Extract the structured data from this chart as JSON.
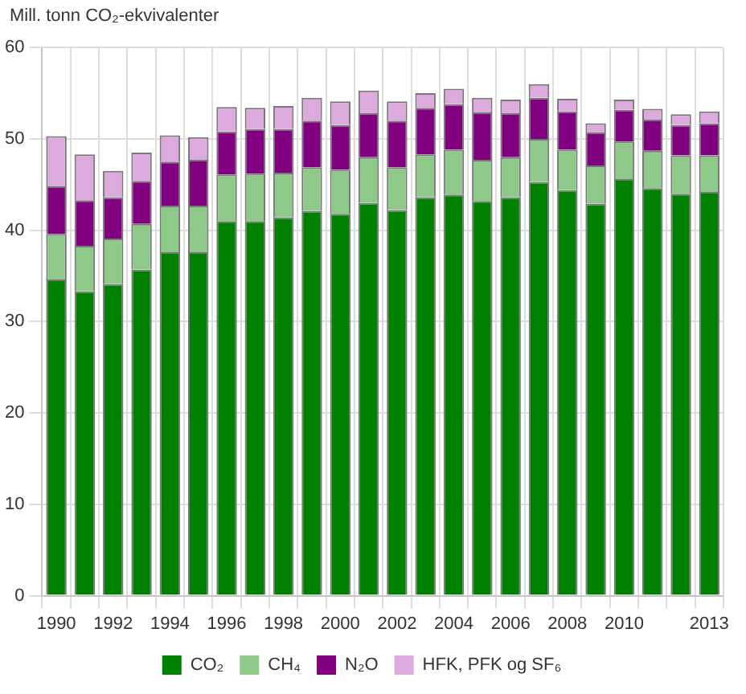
{
  "chart_data": {
    "type": "bar",
    "stacked": true,
    "ylabel": "Mill. tonn CO₂-ekvivalenter",
    "categories": [
      "1990",
      null,
      "1992",
      null,
      "1994",
      null,
      "1996",
      null,
      "1998",
      null,
      "2000",
      null,
      "2002",
      null,
      "2004",
      null,
      "2006",
      null,
      "2008",
      null,
      "2010",
      null,
      null,
      "2013"
    ],
    "series": [
      {
        "name": "CO₂",
        "color": "#008000",
        "values": [
          34.6,
          33.3,
          34.1,
          35.7,
          37.6,
          37.6,
          41.0,
          41.0,
          41.4,
          42.1,
          41.8,
          43.0,
          42.2,
          43.6,
          43.9,
          43.2,
          43.6,
          45.3,
          44.4,
          42.9,
          45.6,
          44.6,
          44.0,
          44.2
        ]
      },
      {
        "name": "CH₄",
        "color": "#8fc98a",
        "values": [
          5.0,
          5.0,
          5.0,
          5.0,
          5.1,
          5.1,
          5.1,
          5.2,
          4.9,
          4.8,
          4.8,
          5.0,
          4.7,
          4.7,
          4.9,
          4.5,
          4.4,
          4.7,
          4.4,
          4.2,
          4.1,
          4.1,
          4.2,
          4.0
        ]
      },
      {
        "name": "N₂O",
        "color": "#800080",
        "values": [
          5.2,
          5.0,
          4.5,
          4.7,
          4.8,
          5.0,
          4.7,
          4.9,
          4.8,
          5.1,
          4.9,
          4.8,
          5.1,
          5.1,
          5.0,
          5.2,
          4.8,
          4.5,
          4.2,
          3.6,
          3.5,
          3.4,
          3.3,
          3.5
        ]
      },
      {
        "name": "HFK, PFK og SF₆",
        "color": "#ddaadd",
        "values": [
          5.5,
          5.0,
          2.9,
          3.1,
          2.9,
          2.5,
          2.7,
          2.3,
          2.5,
          2.5,
          2.6,
          2.5,
          2.1,
          1.6,
          1.7,
          1.6,
          1.5,
          1.5,
          1.4,
          1.0,
          1.1,
          1.2,
          1.2,
          1.3
        ]
      }
    ],
    "ylim": [
      0,
      60
    ],
    "yticks": [
      0,
      10,
      20,
      30,
      40,
      50,
      60
    ],
    "grid": true,
    "legend": "bottom"
  }
}
